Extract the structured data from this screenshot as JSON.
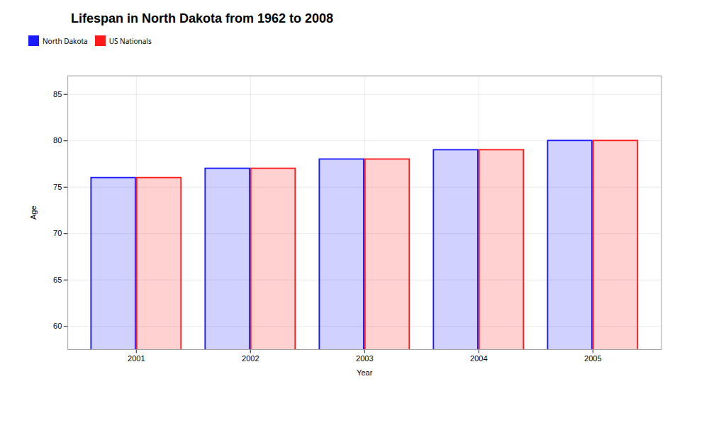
{
  "chart_data": {
    "type": "bar",
    "title": "Lifespan in North Dakota from 1962 to 2008",
    "xlabel": "Year",
    "ylabel": "Age",
    "categories": [
      "2001",
      "2002",
      "2003",
      "2004",
      "2005"
    ],
    "series": [
      {
        "name": "North Dakota",
        "color": "#1a1aff",
        "values": [
          76,
          77,
          78,
          79,
          80
        ]
      },
      {
        "name": "US Nationals",
        "color": "#ff1a1a",
        "values": [
          76,
          77,
          78,
          79,
          80
        ]
      }
    ],
    "ylim": [
      57.5,
      87
    ],
    "yticks": [
      60,
      65,
      70,
      75,
      80,
      85
    ],
    "grid": true
  }
}
